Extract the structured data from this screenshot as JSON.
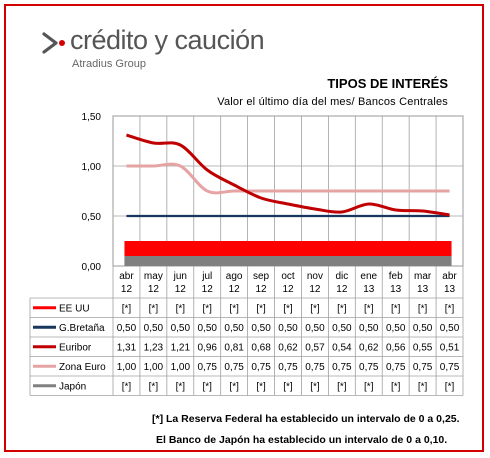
{
  "brand": {
    "name": "crédito y caución",
    "subtitle": "Atradius Group",
    "accent": "#d40000"
  },
  "notes": {
    "line1": "[*] La Reserva Federal ha establecido un intervalo de 0 a 0,25.",
    "line2": "El Banco de Japón ha establecido un intervalo de 0 a 0,10."
  },
  "chart_data": {
    "type": "line",
    "title": "TIPOS DE INTERÉS",
    "subtitle": "Valor el último  día del mes/ Bancos Centrales",
    "categories": [
      "abr 12",
      "may 12",
      "jun 12",
      "jul 12",
      "ago 12",
      "sep 12",
      "oct 12",
      "nov 12",
      "dic 12",
      "ene 13",
      "feb 13",
      "mar 13",
      "abr 13"
    ],
    "category_lines": [
      [
        "abr",
        "12"
      ],
      [
        "may",
        "12"
      ],
      [
        "jun",
        "12"
      ],
      [
        "jul",
        "12"
      ],
      [
        "ago",
        "12"
      ],
      [
        "sep",
        "12"
      ],
      [
        "oct",
        "12"
      ],
      [
        "nov",
        "12"
      ],
      [
        "dic",
        "12"
      ],
      [
        "ene",
        "13"
      ],
      [
        "feb",
        "13"
      ],
      [
        "mar",
        "13"
      ],
      [
        "abr",
        "13"
      ]
    ],
    "ylim": [
      0,
      1.5
    ],
    "yticks": [
      "0,00",
      "0,50",
      "1,00",
      "1,50"
    ],
    "ytick_values": [
      0,
      0.5,
      1.0,
      1.5
    ],
    "grid": true,
    "series": [
      {
        "name": "EE UU",
        "color": "#ff0000",
        "kind": "band",
        "range": [
          0,
          0.25
        ],
        "table": [
          "[*]",
          "[*]",
          "[*]",
          "[*]",
          "[*]",
          "[*]",
          "[*]",
          "[*]",
          "[*]",
          "[*]",
          "[*]",
          "[*]",
          "[*]"
        ]
      },
      {
        "name": "G.Bretaña",
        "color": "#17375e",
        "kind": "line",
        "values": [
          0.5,
          0.5,
          0.5,
          0.5,
          0.5,
          0.5,
          0.5,
          0.5,
          0.5,
          0.5,
          0.5,
          0.5,
          0.5
        ],
        "table": [
          "0,50",
          "0,50",
          "0,50",
          "0,50",
          "0,50",
          "0,50",
          "0,50",
          "0,50",
          "0,50",
          "0,50",
          "0,50",
          "0,50",
          "0,50"
        ]
      },
      {
        "name": "Euribor",
        "color": "#c00000",
        "kind": "line",
        "values": [
          1.31,
          1.23,
          1.21,
          0.96,
          0.81,
          0.68,
          0.62,
          0.57,
          0.54,
          0.62,
          0.56,
          0.55,
          0.51
        ],
        "table": [
          "1,31",
          "1,23",
          "1,21",
          "0,96",
          "0,81",
          "0,68",
          "0,62",
          "0,57",
          "0,54",
          "0,62",
          "0,56",
          "0,55",
          "0,51"
        ]
      },
      {
        "name": "Zona Euro",
        "color": "#e6a3a3",
        "kind": "line",
        "values": [
          1.0,
          1.0,
          1.0,
          0.75,
          0.75,
          0.75,
          0.75,
          0.75,
          0.75,
          0.75,
          0.75,
          0.75,
          0.75
        ],
        "table": [
          "1,00",
          "1,00",
          "1,00",
          "0,75",
          "0,75",
          "0,75",
          "0,75",
          "0,75",
          "0,75",
          "0,75",
          "0,75",
          "0,75",
          "0,75"
        ]
      },
      {
        "name": "Japón",
        "color": "#808080",
        "kind": "band",
        "range": [
          0,
          0.1
        ],
        "table": [
          "[*]",
          "[*]",
          "[*]",
          "[*]",
          "[*]",
          "[*]",
          "[*]",
          "[*]",
          "[*]",
          "[*]",
          "[*]",
          "[*]",
          "[*]"
        ]
      }
    ]
  }
}
